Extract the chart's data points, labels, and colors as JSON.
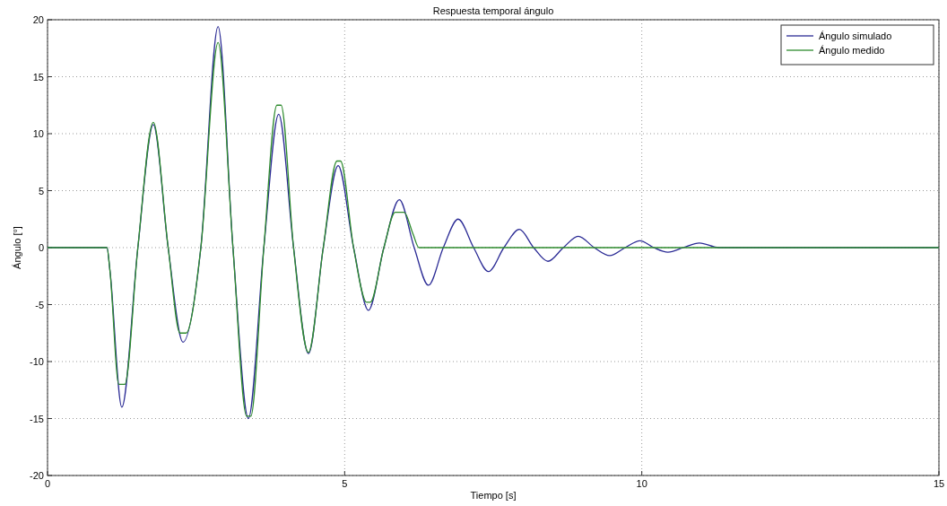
{
  "chart_data": {
    "type": "line",
    "title": "Respuesta temporal ángulo",
    "xlabel": "Tiempo [s]",
    "ylabel": "Ángulo [°]",
    "xlim": [
      0,
      15
    ],
    "ylim": [
      -20,
      20
    ],
    "xticks": [
      0,
      5,
      10,
      15
    ],
    "yticks": [
      -20,
      -15,
      -10,
      -5,
      0,
      5,
      10,
      15,
      20
    ],
    "grid": true,
    "legend": "top right",
    "line_style": "solid",
    "marker": "none",
    "series": [
      {
        "name": "Ángulo simulado",
        "color": "#2b2b95",
        "x": [
          0,
          1.0,
          1.05,
          1.25,
          1.52,
          1.78,
          2.03,
          2.28,
          2.58,
          2.87,
          3.12,
          3.38,
          3.64,
          3.89,
          4.14,
          4.39,
          4.64,
          4.89,
          5.15,
          5.4,
          5.66,
          5.92,
          6.17,
          6.41,
          6.66,
          6.91,
          7.17,
          7.42,
          7.68,
          7.94,
          8.18,
          8.42,
          8.68,
          8.93,
          9.2,
          9.46,
          9.72,
          9.97,
          10.2,
          10.44,
          10.7,
          10.97,
          11.3,
          15
        ],
        "values": [
          0,
          0,
          -2,
          -14,
          0,
          10.8,
          0,
          -8.3,
          0,
          19.4,
          0,
          -15,
          0,
          11.7,
          0,
          -9.3,
          0,
          7.2,
          0,
          -5.5,
          0,
          4.2,
          0,
          -3.3,
          0,
          2.5,
          0,
          -2.1,
          0,
          1.6,
          0,
          -1.2,
          0,
          1.0,
          0,
          -0.7,
          0,
          0.6,
          0,
          -0.4,
          0,
          0.4,
          0,
          0
        ]
      },
      {
        "name": "Ángulo medido",
        "color": "#2e8b2e",
        "x": [
          0,
          1.0,
          1.05,
          1.2,
          1.3,
          1.52,
          1.78,
          2.03,
          2.23,
          2.33,
          2.58,
          2.87,
          3.12,
          3.35,
          3.42,
          3.64,
          3.86,
          3.93,
          4.14,
          4.39,
          4.64,
          4.87,
          4.93,
          5.15,
          5.37,
          5.43,
          5.66,
          5.85,
          6.0,
          6.15,
          6.25,
          15
        ],
        "values": [
          0,
          0,
          -2,
          -12,
          -12,
          0,
          11,
          0,
          -7.5,
          -7.5,
          0,
          18,
          0,
          -14.8,
          -14.8,
          0,
          12.5,
          12.5,
          0,
          -9.2,
          0,
          7.6,
          7.6,
          0,
          -4.8,
          -4.8,
          0,
          3.1,
          3.1,
          1.2,
          0,
          0
        ]
      }
    ]
  }
}
